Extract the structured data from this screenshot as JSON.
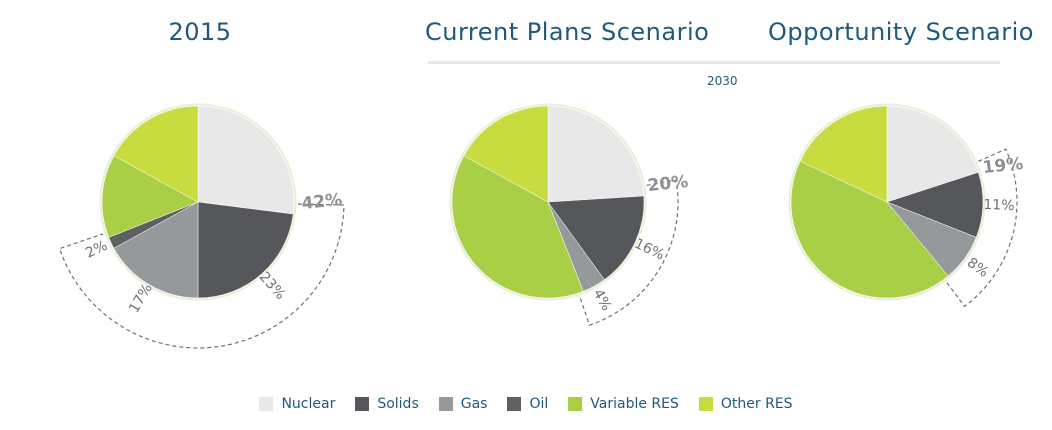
{
  "chart_data": [
    {
      "type": "pie",
      "title": "2015",
      "slices": [
        {
          "name": "Nuclear",
          "value": 27,
          "color": "#e8e8e8"
        },
        {
          "name": "Solids",
          "value": 23,
          "label": "23%",
          "color": "#55575a"
        },
        {
          "name": "Gas",
          "value": 17,
          "label": "17%",
          "color": "#96999c"
        },
        {
          "name": "Oil",
          "value": 2,
          "label": "2%",
          "color": "#5e6063"
        },
        {
          "name": "Variable RES",
          "value": 14,
          "color": "#a8cf45"
        },
        {
          "name": "Other RES",
          "value": 17,
          "color": "#c9dc3f"
        }
      ],
      "bracket_label": "42%"
    },
    {
      "type": "pie",
      "title": "Current Plans Scenario",
      "slices": [
        {
          "name": "Nuclear",
          "value": 24,
          "color": "#e8e8e8"
        },
        {
          "name": "Solids",
          "value": 16,
          "label": "16%",
          "color": "#55575a"
        },
        {
          "name": "Gas",
          "value": 4,
          "label": "4%",
          "color": "#96999c"
        },
        {
          "name": "Oil",
          "value": 0,
          "color": "#5e6063"
        },
        {
          "name": "Variable RES",
          "value": 39,
          "color": "#a8cf45"
        },
        {
          "name": "Other RES",
          "value": 17,
          "color": "#c9dc3f"
        }
      ],
      "bracket_label": "20%"
    },
    {
      "type": "pie",
      "title": "Opportunity Scenario",
      "slices": [
        {
          "name": "Nuclear",
          "value": 20,
          "color": "#e8e8e8"
        },
        {
          "name": "Solids",
          "value": 11,
          "label": "11%",
          "color": "#55575a"
        },
        {
          "name": "Gas",
          "value": 8,
          "label": "8%",
          "color": "#96999c"
        },
        {
          "name": "Oil",
          "value": 0,
          "color": "#5e6063"
        },
        {
          "name": "Variable RES",
          "value": 43,
          "color": "#a8cf45"
        },
        {
          "name": "Other RES",
          "value": 18,
          "color": "#c9dc3f"
        }
      ],
      "bracket_label": "19%"
    }
  ],
  "year_label": "2030",
  "legend": [
    {
      "name": "Nuclear",
      "color": "#e8e8e8"
    },
    {
      "name": "Solids",
      "color": "#55575a"
    },
    {
      "name": "Gas",
      "color": "#96999c"
    },
    {
      "name": "Oil",
      "color": "#5e6063"
    },
    {
      "name": "Variable RES",
      "color": "#a8cf45"
    },
    {
      "name": "Other RES",
      "color": "#c9dc3f"
    }
  ]
}
